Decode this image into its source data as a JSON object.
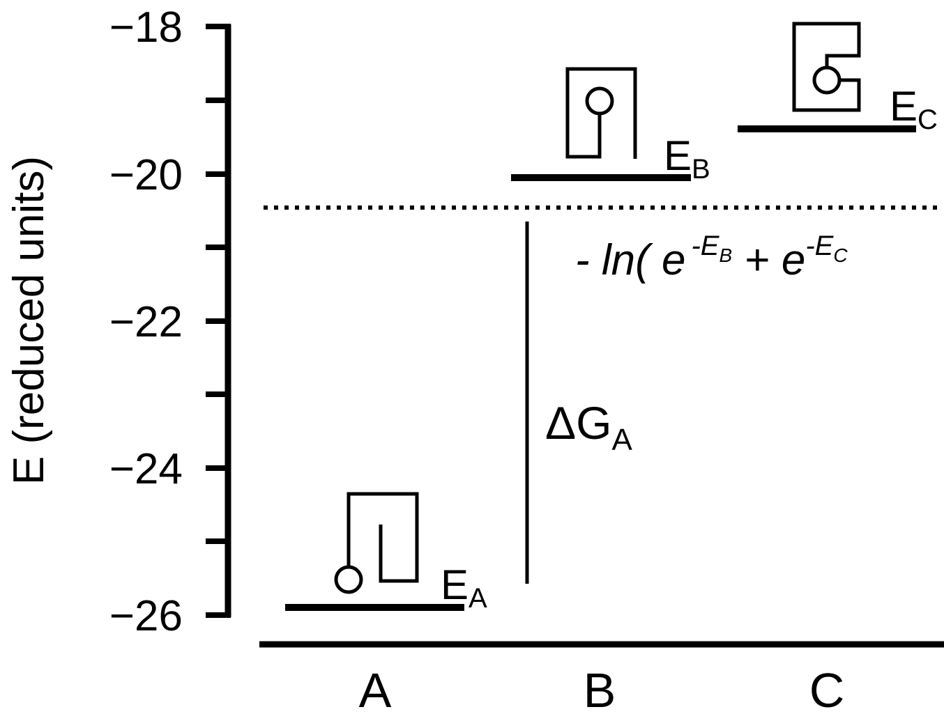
{
  "axis": {
    "label": "E (reduced units)",
    "tick_labels": [
      "−18",
      "−20",
      "−22",
      "−24",
      "−26"
    ]
  },
  "categories": [
    "A",
    "B",
    "C"
  ],
  "levels": [
    {
      "state": "A",
      "label_main": "E",
      "label_sub": "A",
      "energy": -25.95
    },
    {
      "state": "B",
      "label_main": "E",
      "label_sub": "B",
      "energy": -20.05
    },
    {
      "state": "C",
      "label_main": "E",
      "label_sub": "C",
      "energy": -19.4
    }
  ],
  "free_energy_line": {
    "energy": -20.5,
    "formula": {
      "prefix": "- ln( e",
      "exp1_main": "-E",
      "exp1_sub": "B",
      "plus": " + e",
      "exp2_main": "-E",
      "exp2_sub": "C"
    }
  },
  "delta_g": {
    "label_main": "ΔG",
    "label_sub": "A"
  }
}
